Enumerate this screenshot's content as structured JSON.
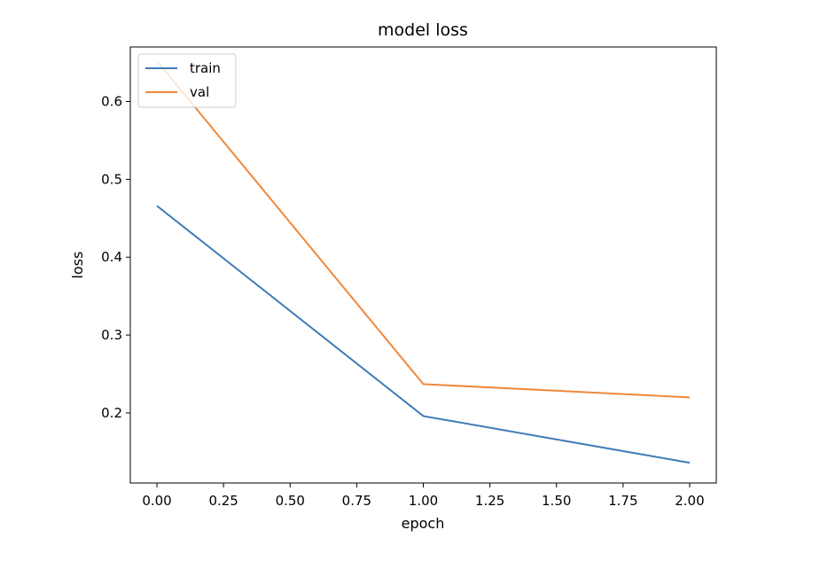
{
  "chart_data": {
    "type": "line",
    "title": "model loss",
    "xlabel": "epoch",
    "ylabel": "loss",
    "x": [
      0,
      1,
      2
    ],
    "series": [
      {
        "name": "train",
        "values": [
          0.466,
          0.196,
          0.136
        ],
        "color": "#3e7bb6"
      },
      {
        "name": "val",
        "values": [
          0.652,
          0.237,
          0.22
        ],
        "color": "#f0883a"
      }
    ],
    "xlim": [
      -0.1,
      2.1
    ],
    "ylim": [
      0.11,
      0.67
    ],
    "xticks": [
      "0.00",
      "0.25",
      "0.50",
      "0.75",
      "1.00",
      "1.25",
      "1.50",
      "1.75",
      "2.00"
    ],
    "yticks": [
      "0.2",
      "0.3",
      "0.4",
      "0.5",
      "0.6"
    ],
    "legend": "top-left",
    "grid": false
  }
}
